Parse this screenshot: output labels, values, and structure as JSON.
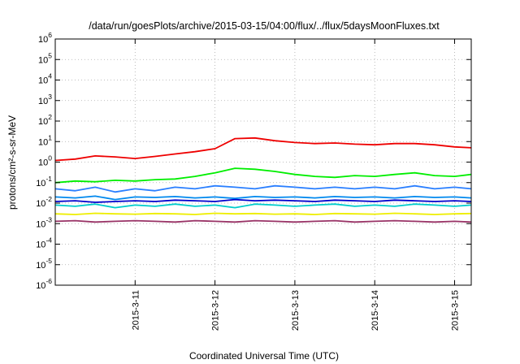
{
  "chart_data": {
    "type": "line",
    "title": "/data/run/goesPlots/archive/2015-03-15/04:00/flux/../flux/5daysMoonFluxes.txt",
    "xlabel": "Coordinated Universal Time (UTC)",
    "ylabel": "protons/cm²-s-sr-MeV",
    "y_scale": "log",
    "ylim": [
      1e-06,
      1000000.0
    ],
    "xlim": [
      "2015-03-10T00:00",
      "2015-03-15T05:00"
    ],
    "x_ticks": [
      "2015-3-11",
      "2015-3-12",
      "2015-3-13",
      "2015-3-14",
      "2015-3-15"
    ],
    "y_tick_exponents": [
      "-6",
      "-5",
      "-4",
      "-3",
      "-2",
      "-1",
      "0",
      "1",
      "2",
      "3",
      "4",
      "5",
      "6"
    ],
    "grid": true,
    "legend": "none",
    "series": [
      {
        "color": "#ee0000",
        "x": [
          "2015-03-10T00:00",
          "2015-03-10T06:00",
          "2015-03-10T12:00",
          "2015-03-10T18:00",
          "2015-03-11T00:00",
          "2015-03-11T06:00",
          "2015-03-11T12:00",
          "2015-03-11T18:00",
          "2015-03-12T00:00",
          "2015-03-12T06:00",
          "2015-03-12T12:00",
          "2015-03-12T18:00",
          "2015-03-13T00:00",
          "2015-03-13T06:00",
          "2015-03-13T12:00",
          "2015-03-13T18:00",
          "2015-03-14T00:00",
          "2015-03-14T06:00",
          "2015-03-14T12:00",
          "2015-03-14T18:00",
          "2015-03-15T00:00",
          "2015-03-15T05:00"
        ],
        "values": [
          1.2,
          1.4,
          2.0,
          1.8,
          1.5,
          1.9,
          2.5,
          3.2,
          4.5,
          14,
          15,
          11,
          9,
          8,
          8.5,
          7.5,
          7,
          8,
          8,
          7,
          5.5,
          5
        ]
      },
      {
        "color": "#00ee00",
        "x": [
          "2015-03-10T00:00",
          "2015-03-10T06:00",
          "2015-03-10T12:00",
          "2015-03-10T18:00",
          "2015-03-11T00:00",
          "2015-03-11T06:00",
          "2015-03-11T12:00",
          "2015-03-11T18:00",
          "2015-03-12T00:00",
          "2015-03-12T06:00",
          "2015-03-12T12:00",
          "2015-03-12T18:00",
          "2015-03-13T00:00",
          "2015-03-13T06:00",
          "2015-03-13T12:00",
          "2015-03-13T18:00",
          "2015-03-14T00:00",
          "2015-03-14T06:00",
          "2015-03-14T12:00",
          "2015-03-14T18:00",
          "2015-03-15T00:00",
          "2015-03-15T05:00"
        ],
        "values": [
          0.1,
          0.12,
          0.11,
          0.13,
          0.12,
          0.14,
          0.15,
          0.2,
          0.3,
          0.5,
          0.45,
          0.35,
          0.25,
          0.2,
          0.18,
          0.22,
          0.2,
          0.25,
          0.3,
          0.22,
          0.2,
          0.25
        ]
      },
      {
        "color": "#2a7fff",
        "x": [
          "2015-03-10T00:00",
          "2015-03-10T06:00",
          "2015-03-10T12:00",
          "2015-03-10T18:00",
          "2015-03-11T00:00",
          "2015-03-11T06:00",
          "2015-03-11T12:00",
          "2015-03-11T18:00",
          "2015-03-12T00:00",
          "2015-03-12T06:00",
          "2015-03-12T12:00",
          "2015-03-12T18:00",
          "2015-03-13T00:00",
          "2015-03-13T06:00",
          "2015-03-13T12:00",
          "2015-03-13T18:00",
          "2015-03-14T00:00",
          "2015-03-14T06:00",
          "2015-03-14T12:00",
          "2015-03-14T18:00",
          "2015-03-15T00:00",
          "2015-03-15T05:00"
        ],
        "values": [
          0.05,
          0.04,
          0.06,
          0.035,
          0.05,
          0.04,
          0.06,
          0.05,
          0.07,
          0.06,
          0.05,
          0.07,
          0.06,
          0.05,
          0.06,
          0.05,
          0.06,
          0.05,
          0.07,
          0.05,
          0.06,
          0.05
        ]
      },
      {
        "color": "#0088ee",
        "x": [
          "2015-03-10T00:00",
          "2015-03-10T06:00",
          "2015-03-10T12:00",
          "2015-03-10T18:00",
          "2015-03-11T00:00",
          "2015-03-11T06:00",
          "2015-03-11T12:00",
          "2015-03-11T18:00",
          "2015-03-12T00:00",
          "2015-03-12T06:00",
          "2015-03-12T12:00",
          "2015-03-12T18:00",
          "2015-03-13T00:00",
          "2015-03-13T06:00",
          "2015-03-13T12:00",
          "2015-03-13T18:00",
          "2015-03-14T00:00",
          "2015-03-14T06:00",
          "2015-03-14T12:00",
          "2015-03-14T18:00",
          "2015-03-15T00:00",
          "2015-03-15T05:00"
        ],
        "values": [
          0.02,
          0.018,
          0.022,
          0.015,
          0.02,
          0.019,
          0.021,
          0.018,
          0.02,
          0.017,
          0.021,
          0.019,
          0.02,
          0.018,
          0.021,
          0.019,
          0.02,
          0.018,
          0.021,
          0.019,
          0.02,
          0.018
        ]
      },
      {
        "color": "#0000cc",
        "x": [
          "2015-03-10T00:00",
          "2015-03-10T06:00",
          "2015-03-10T12:00",
          "2015-03-10T18:00",
          "2015-03-11T00:00",
          "2015-03-11T06:00",
          "2015-03-11T12:00",
          "2015-03-11T18:00",
          "2015-03-12T00:00",
          "2015-03-12T06:00",
          "2015-03-12T12:00",
          "2015-03-12T18:00",
          "2015-03-13T00:00",
          "2015-03-13T06:00",
          "2015-03-13T12:00",
          "2015-03-13T18:00",
          "2015-03-14T00:00",
          "2015-03-14T06:00",
          "2015-03-14T12:00",
          "2015-03-14T18:00",
          "2015-03-15T00:00",
          "2015-03-15T05:00"
        ],
        "values": [
          0.012,
          0.013,
          0.011,
          0.012,
          0.013,
          0.012,
          0.014,
          0.013,
          0.012,
          0.015,
          0.013,
          0.014,
          0.013,
          0.012,
          0.014,
          0.013,
          0.012,
          0.014,
          0.013,
          0.012,
          0.013,
          0.012
        ]
      },
      {
        "color": "#00cccc",
        "x": [
          "2015-03-10T00:00",
          "2015-03-10T06:00",
          "2015-03-10T12:00",
          "2015-03-10T18:00",
          "2015-03-11T00:00",
          "2015-03-11T06:00",
          "2015-03-11T12:00",
          "2015-03-11T18:00",
          "2015-03-12T00:00",
          "2015-03-12T06:00",
          "2015-03-12T12:00",
          "2015-03-12T18:00",
          "2015-03-13T00:00",
          "2015-03-13T06:00",
          "2015-03-13T12:00",
          "2015-03-13T18:00",
          "2015-03-14T00:00",
          "2015-03-14T06:00",
          "2015-03-14T12:00",
          "2015-03-14T18:00",
          "2015-03-15T00:00",
          "2015-03-15T05:00"
        ],
        "values": [
          0.008,
          0.007,
          0.009,
          0.006,
          0.008,
          0.007,
          0.009,
          0.007,
          0.008,
          0.006,
          0.009,
          0.008,
          0.007,
          0.008,
          0.009,
          0.007,
          0.008,
          0.007,
          0.009,
          0.008,
          0.007,
          0.008
        ]
      },
      {
        "color": "#eeee00",
        "x": [
          "2015-03-10T00:00",
          "2015-03-10T06:00",
          "2015-03-10T12:00",
          "2015-03-10T18:00",
          "2015-03-11T00:00",
          "2015-03-11T06:00",
          "2015-03-11T12:00",
          "2015-03-11T18:00",
          "2015-03-12T00:00",
          "2015-03-12T06:00",
          "2015-03-12T12:00",
          "2015-03-12T18:00",
          "2015-03-13T00:00",
          "2015-03-13T06:00",
          "2015-03-13T12:00",
          "2015-03-13T18:00",
          "2015-03-14T00:00",
          "2015-03-14T06:00",
          "2015-03-14T12:00",
          "2015-03-14T18:00",
          "2015-03-15T00:00",
          "2015-03-15T05:00"
        ],
        "values": [
          0.003,
          0.0028,
          0.0032,
          0.003,
          0.0029,
          0.0031,
          0.003,
          0.0028,
          0.0032,
          0.003,
          0.0031,
          0.0029,
          0.003,
          0.0028,
          0.0031,
          0.003,
          0.0029,
          0.0032,
          0.003,
          0.0028,
          0.003,
          0.0031
        ]
      },
      {
        "color": "#993366",
        "x": [
          "2015-03-10T00:00",
          "2015-03-10T06:00",
          "2015-03-10T12:00",
          "2015-03-10T18:00",
          "2015-03-11T00:00",
          "2015-03-11T06:00",
          "2015-03-11T12:00",
          "2015-03-11T18:00",
          "2015-03-12T00:00",
          "2015-03-12T06:00",
          "2015-03-12T12:00",
          "2015-03-12T18:00",
          "2015-03-13T00:00",
          "2015-03-13T06:00",
          "2015-03-13T12:00",
          "2015-03-13T18:00",
          "2015-03-14T00:00",
          "2015-03-14T06:00",
          "2015-03-14T12:00",
          "2015-03-14T18:00",
          "2015-03-15T00:00",
          "2015-03-15T05:00"
        ],
        "values": [
          0.0013,
          0.0014,
          0.0012,
          0.0013,
          0.0014,
          0.0013,
          0.0012,
          0.0014,
          0.0013,
          0.0012,
          0.0014,
          0.0013,
          0.0012,
          0.0013,
          0.0014,
          0.0012,
          0.0013,
          0.0014,
          0.0013,
          0.0012,
          0.0013,
          0.0012
        ]
      }
    ]
  }
}
